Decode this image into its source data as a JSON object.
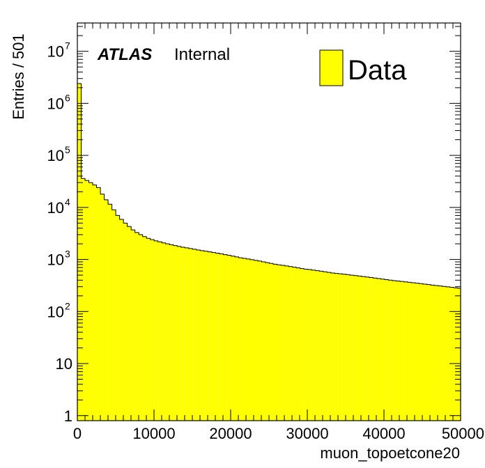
{
  "chart_data": {
    "type": "bar",
    "xlabel": "muon_topoetcone20",
    "ylabel": "Entries / 501",
    "xlim": [
      0,
      50000
    ],
    "ylim": [
      0.8,
      35000000
    ],
    "yscale": "log",
    "grid": false,
    "legend_placement": "top-right",
    "x_ticks": [
      0,
      10000,
      20000,
      30000,
      40000,
      50000
    ],
    "x_tick_labels": [
      "0",
      "10000",
      "20000",
      "30000",
      "40000",
      "50000"
    ],
    "y_ticks": [
      {
        "value": 1,
        "base": "1",
        "exp": ""
      },
      {
        "value": 10,
        "base": "10",
        "exp": ""
      },
      {
        "value": 100,
        "base": "10",
        "exp": "2"
      },
      {
        "value": 1000,
        "base": "10",
        "exp": "3"
      },
      {
        "value": 10000,
        "base": "10",
        "exp": "4"
      },
      {
        "value": 100000,
        "base": "10",
        "exp": "5"
      },
      {
        "value": 1000000,
        "base": "10",
        "exp": "6"
      },
      {
        "value": 10000000,
        "base": "10",
        "exp": "7"
      }
    ],
    "bin_width": 501,
    "x_start": 0,
    "series": [
      {
        "name": "Data",
        "color": "#ffff00",
        "values": [
          2400000,
          36000,
          33000,
          30000,
          27000,
          24000,
          18000,
          14000,
          11500,
          9000,
          7000,
          5900,
          5000,
          4300,
          3700,
          3300,
          3000,
          2750,
          2550,
          2400,
          2280,
          2180,
          2080,
          2000,
          1920,
          1850,
          1780,
          1720,
          1670,
          1620,
          1570,
          1520,
          1480,
          1440,
          1400,
          1360,
          1320,
          1280,
          1240,
          1200,
          1160,
          1120,
          1080,
          1050,
          1020,
          990,
          960,
          930,
          900,
          870,
          840,
          810,
          790,
          770,
          750,
          730,
          710,
          690,
          670,
          650,
          640,
          625,
          610,
          595,
          580,
          565,
          550,
          540,
          530,
          520,
          510,
          500,
          490,
          480,
          470,
          460,
          450,
          440,
          430,
          420,
          410,
          400,
          392,
          385,
          378,
          371,
          364,
          357,
          350,
          343,
          336,
          329,
          322,
          316,
          310,
          304,
          298,
          292,
          286,
          280
        ]
      }
    ]
  },
  "plot_labels": {
    "experiment": "ATLAS",
    "status": "Internal",
    "legend_entry": "Data"
  }
}
